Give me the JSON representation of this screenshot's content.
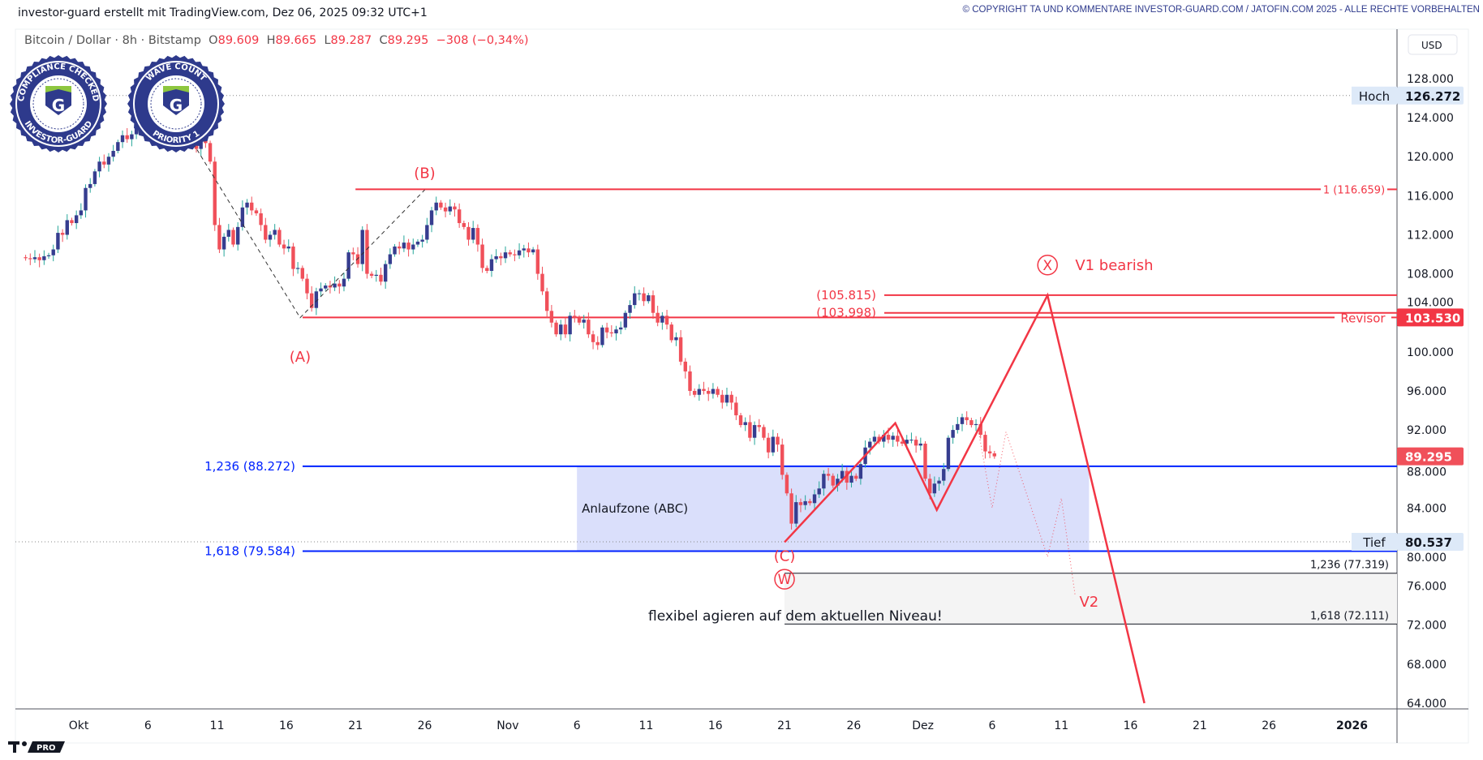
{
  "header": {
    "attribution": "investor-guard erstellt mit TradingView.com, Dez 06, 2025 09:32 UTC+1",
    "copyright": "© COPYRIGHT TA UND KOMMENTARE INVESTOR-GUARD.COM / JATOFIN.COM 2025 - ALLE RECHTE VORBEHALTEN"
  },
  "legend": {
    "symbol": "Bitcoin / Dollar · 8h · Bitstamp",
    "o_label": "O",
    "o": "89.609",
    "h_label": "H",
    "h": "89.665",
    "l_label": "L",
    "l": "89.287",
    "c_label": "C",
    "c": "89.295",
    "change": "−308 (−0,34%)"
  },
  "badges": [
    {
      "top": "COMPLIANCE CHECKED",
      "bottom": "INVESTOR-GUARD",
      "letter": "G"
    },
    {
      "top": "WAVE COUNT",
      "bottom": "PRIORITY 1",
      "letter": "G"
    }
  ],
  "colors": {
    "up": "#363d8f",
    "down": "#f0505a",
    "up_wick": "#26a69a",
    "annot_red": "#f23645",
    "fib_blue": "#0022ff",
    "zone": "#dadffb"
  },
  "chart_data": {
    "type": "candlestick",
    "interval": "8h",
    "currency": "USD",
    "ylim": [
      64000,
      128000
    ],
    "y_ticks": [
      "128.000",
      "124.000",
      "120.000",
      "116.000",
      "112.000",
      "108.000",
      "104.000",
      "100.000",
      "96.000",
      "92.000",
      "88.000",
      "84.000",
      "80.000",
      "76.000",
      "72.000",
      "68.000",
      "64.000"
    ],
    "x_ticks": [
      {
        "label": "Okt",
        "date": "2025-10-01"
      },
      {
        "label": "6",
        "date": "2025-10-06"
      },
      {
        "label": "11",
        "date": "2025-10-11"
      },
      {
        "label": "16",
        "date": "2025-10-16"
      },
      {
        "label": "21",
        "date": "2025-10-21"
      },
      {
        "label": "26",
        "date": "2025-10-26"
      },
      {
        "label": "Nov",
        "date": "2025-11-01"
      },
      {
        "label": "6",
        "date": "2025-11-06"
      },
      {
        "label": "11",
        "date": "2025-11-11"
      },
      {
        "label": "16",
        "date": "2025-11-16"
      },
      {
        "label": "21",
        "date": "2025-11-21"
      },
      {
        "label": "26",
        "date": "2025-11-26"
      },
      {
        "label": "Dez",
        "date": "2025-12-01"
      },
      {
        "label": "6",
        "date": "2025-12-06"
      },
      {
        "label": "11",
        "date": "2025-12-11"
      },
      {
        "label": "16",
        "date": "2025-12-16"
      },
      {
        "label": "21",
        "date": "2025-12-21"
      },
      {
        "label": "26",
        "date": "2025-12-26"
      },
      {
        "label": "2026",
        "date": "2026-01-01"
      }
    ],
    "first_candle_date": "2025-09-27",
    "closes_8h": [
      109.6,
      109.5,
      109.7,
      109.4,
      109.8,
      109.9,
      110.5,
      112.2,
      112.0,
      113.5,
      113.2,
      114.0,
      114.5,
      116.8,
      117.2,
      118.5,
      119.5,
      119.2,
      120.0,
      120.6,
      121.5,
      122.2,
      121.8,
      122.3,
      124.8,
      123.5,
      125.2,
      126.0,
      124.5,
      124.0,
      123.2,
      122.0,
      121.4,
      122.5,
      123.0,
      122.6,
      121.5,
      120.8,
      121.8,
      121.4,
      119.5,
      113.0,
      110.5,
      111.8,
      112.5,
      111.0,
      112.8,
      114.8,
      115.3,
      114.5,
      114.2,
      113.0,
      111.5,
      112.0,
      112.5,
      111.0,
      110.6,
      110.8,
      108.5,
      108.6,
      107.5,
      106.0,
      104.5,
      106.2,
      106.5,
      106.8,
      106.6,
      107.0,
      106.7,
      107.5,
      110.2,
      110.0,
      109.0,
      112.5,
      108.0,
      107.8,
      107.9,
      107.2,
      109.0,
      110.0,
      110.8,
      110.6,
      111.2,
      110.5,
      111.0,
      111.3,
      111.5,
      113.0,
      114.5,
      115.3,
      114.8,
      114.4,
      114.9,
      114.6,
      113.2,
      112.8,
      111.5,
      112.7,
      111.0,
      108.6,
      108.3,
      109.5,
      109.8,
      109.6,
      110.2,
      110.0,
      109.9,
      110.4,
      110.6,
      110.2,
      110.5,
      108.0,
      106.2,
      104.2,
      103.0,
      101.8,
      102.8,
      101.8,
      103.7,
      103.5,
      103.0,
      103.3,
      101.8,
      101.0,
      100.7,
      102.5,
      102.0,
      101.9,
      102.3,
      102.5,
      104.0,
      104.8,
      106.0,
      106.0,
      105.2,
      105.8,
      104.0,
      103.0,
      103.7,
      102.8,
      101.2,
      101.5,
      99.0,
      98.0,
      96.0,
      95.6,
      96.2,
      96.0,
      95.7,
      96.2,
      95.6,
      94.8,
      95.6,
      94.8,
      93.5,
      92.5,
      92.8,
      91.2,
      92.5,
      92.3,
      91.2,
      89.7,
      91.3,
      90.5,
      87.4,
      85.5,
      82.4,
      84.6,
      84.3,
      84.7,
      84.5,
      85.4,
      86.0,
      87.5,
      87.3,
      86.3,
      87.0,
      87.8,
      86.6,
      87.3,
      87.0,
      88.5,
      90.2,
      90.8,
      91.3,
      90.8,
      91.5,
      91.0,
      91.4,
      90.8,
      90.6,
      91.0,
      91.0,
      90.4,
      90.6,
      87.0,
      85.5,
      86.5,
      86.8,
      88.0,
      91.2,
      92.0,
      92.6,
      93.3,
      93.0,
      92.5,
      92.6,
      91.5,
      89.8,
      89.6,
      89.295
    ],
    "price_labels": {
      "high": {
        "label": "Hoch",
        "value": "126.272",
        "price": 126.272
      },
      "low": {
        "label": "Tief",
        "value": "80.537",
        "price": 80.537
      },
      "last": {
        "value": "89.295",
        "price": 89.295
      },
      "revisor": {
        "label": "Revisor",
        "value": "103.530",
        "price": 103.53
      }
    },
    "levels": [
      {
        "label": "1 (116.659)",
        "price": 116.659,
        "from": "2025-10-21",
        "color": "red"
      },
      {
        "label": "(105.815)",
        "price": 105.815,
        "from": "2025-12-05",
        "color": "red"
      },
      {
        "label": "(103.998)",
        "price": 103.998,
        "from": "2025-12-05",
        "color": "red"
      },
      {
        "label": "1,236 (88.272)",
        "price": 88.272,
        "from": "2025-10-17",
        "color": "blue"
      },
      {
        "label": "1,618 (79.584)",
        "price": 79.584,
        "from": "2025-10-17",
        "color": "blue"
      },
      {
        "label": "1,236 (77.319)",
        "price": 77.319,
        "from": "2025-11-21",
        "color": "black"
      },
      {
        "label": "1,618 (72.111)",
        "price": 72.111,
        "from": "2025-11-21",
        "color": "black"
      }
    ],
    "zone": {
      "label": "Anlaufzone (ABC)",
      "from": "2025-11-06",
      "to": "2025-12-13",
      "top": 88.272,
      "bottom": 79.584
    },
    "wave_labels": [
      {
        "text": "(A)",
        "date": "2025-10-17",
        "price": 99.0
      },
      {
        "text": "(B)",
        "date": "2025-10-26",
        "price": 117.8
      },
      {
        "text": "(C)",
        "date": "2025-11-21",
        "price": 78.6
      },
      {
        "text": "W",
        "date": "2025-11-21",
        "price": 76.2,
        "circled": true
      },
      {
        "text": "X",
        "date": "2025-12-10",
        "price": 108.4,
        "circled": true
      },
      {
        "text": "V1 bearish",
        "date": "2025-12-12",
        "price": 108.4
      },
      {
        "text": "V2",
        "date": "2025-12-13",
        "price": 73.9
      }
    ],
    "abc_path": [
      [
        "2025-10-09",
        122.0
      ],
      [
        "2025-10-17",
        103.5
      ],
      [
        "2025-10-26",
        116.6
      ]
    ],
    "scenario_path": [
      [
        "2025-11-21",
        80.5
      ],
      [
        "2025-11-29",
        92.7
      ],
      [
        "2025-12-02",
        83.8
      ],
      [
        "2025-12-10",
        105.8
      ],
      [
        "2025-12-17",
        64.0
      ]
    ],
    "alt_path": [
      [
        "2025-12-05",
        92.0
      ],
      [
        "2025-12-06",
        84.0
      ],
      [
        "2025-12-07",
        91.8
      ],
      [
        "2025-12-10",
        79.0
      ],
      [
        "2025-12-11",
        85.0
      ],
      [
        "2025-12-12",
        75.0
      ]
    ],
    "note": "flexibel agieren auf dem aktuellen Niveau!"
  },
  "footer": {
    "logo": "TV PRO"
  }
}
